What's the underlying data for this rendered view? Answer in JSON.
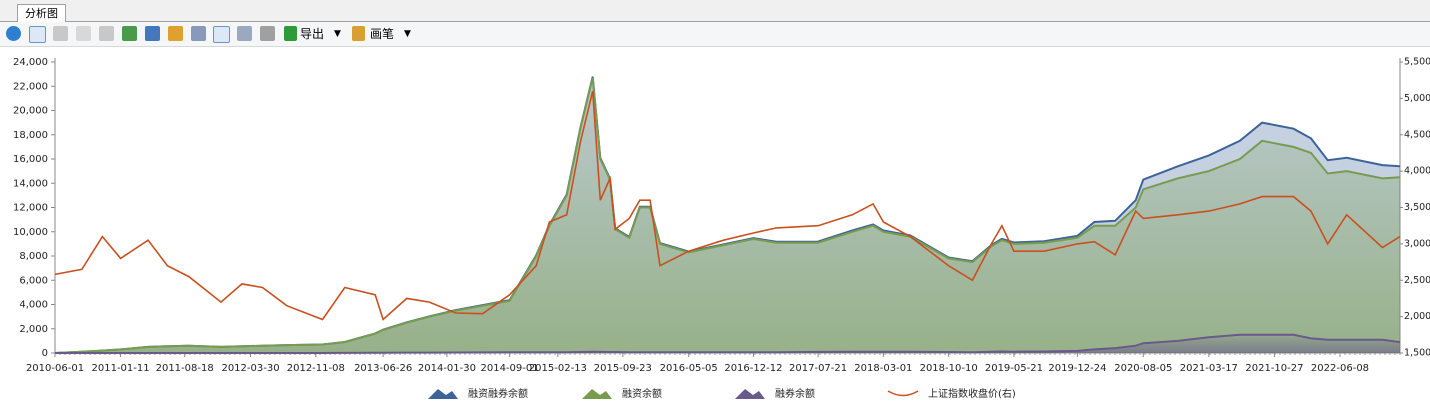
{
  "toolbar": {
    "tab": "分析图",
    "export": "导出",
    "pen": "画笔"
  },
  "chart_data": {
    "type": "area",
    "x": [
      "2010-06-01",
      "2010-09-01",
      "2010-11-10",
      "2011-01-11",
      "2011-04-15",
      "2011-06-20",
      "2011-09-01",
      "2011-12-20",
      "2012-03-01",
      "2012-05-10",
      "2012-08-01",
      "2012-12-01",
      "2013-02-15",
      "2013-05-30",
      "2013-06-26",
      "2013-09-15",
      "2013-12-01",
      "2014-03-01",
      "2014-06-01",
      "2014-09-01",
      "2014-12-01",
      "2015-01-15",
      "2015-03-15",
      "2015-05-01",
      "2015-06-12",
      "2015-07-08",
      "2015-08-10",
      "2015-08-28",
      "2015-10-15",
      "2015-11-20",
      "2015-12-25",
      "2016-01-28",
      "2016-05-05",
      "2016-09-01",
      "2016-12-12",
      "2017-03-01",
      "2017-07-21",
      "2017-11-15",
      "2018-01-25",
      "2018-03-01",
      "2018-06-01",
      "2018-10-10",
      "2018-12-30",
      "2019-03-05",
      "2019-04-10",
      "2019-05-21",
      "2019-09-01",
      "2019-12-24",
      "2020-02-20",
      "2020-05-01",
      "2020-07-10",
      "2020-08-05",
      "2020-12-01",
      "2021-03-17",
      "2021-07-01",
      "2021-09-15",
      "2021-12-31",
      "2022-03-01",
      "2022-04-27",
      "2022-07-01",
      "2022-10-31",
      "2022-12-30"
    ],
    "series": [
      {
        "name": "融资融券余额",
        "color": "#3d6399",
        "kind": "area",
        "axis": "y",
        "values": [
          0,
          100,
          200,
          300,
          500,
          550,
          600,
          500,
          550,
          600,
          650,
          700,
          910,
          1620,
          1920,
          2530,
          3030,
          3540,
          3950,
          4360,
          8060,
          10560,
          13070,
          18580,
          22800,
          16090,
          14380,
          10280,
          9570,
          12070,
          12070,
          9060,
          8360,
          8960,
          9470,
          9170,
          9190,
          10100,
          10610,
          10100,
          9700,
          7880,
          7570,
          8900,
          9420,
          9110,
          9220,
          9670,
          10800,
          10900,
          12600,
          14300,
          15400,
          16300,
          17500,
          19000,
          18500,
          17700,
          15900,
          16100,
          15500,
          15400
        ]
      },
      {
        "name": "融资余额",
        "color": "#789c4f",
        "kind": "area",
        "axis": "y",
        "values": [
          0,
          100,
          200,
          300,
          500,
          550,
          600,
          500,
          550,
          600,
          650,
          700,
          900,
          1600,
          1900,
          2500,
          3000,
          3500,
          3900,
          4300,
          8000,
          10500,
          13000,
          18500,
          22700,
          16000,
          14300,
          10200,
          9500,
          12000,
          12000,
          9000,
          8300,
          8900,
          9400,
          9100,
          9100,
          10000,
          10500,
          10000,
          9600,
          7800,
          7500,
          8800,
          9300,
          9000,
          9100,
          9500,
          10500,
          10500,
          12000,
          13500,
          14400,
          15000,
          16000,
          17500,
          17000,
          16500,
          14800,
          15000,
          14400,
          14500
        ]
      },
      {
        "name": "融券余额",
        "color": "#6a5a8c",
        "kind": "area",
        "axis": "y",
        "values": [
          0,
          0,
          0,
          0,
          0,
          0,
          0,
          0,
          0,
          0,
          0,
          0,
          10,
          20,
          20,
          30,
          30,
          40,
          50,
          60,
          60,
          60,
          70,
          80,
          100,
          90,
          80,
          80,
          70,
          70,
          70,
          60,
          60,
          60,
          70,
          70,
          90,
          100,
          110,
          100,
          100,
          80,
          70,
          100,
          120,
          110,
          120,
          170,
          300,
          400,
          600,
          800,
          1000,
          1300,
          1500,
          1500,
          1500,
          1200,
          1100,
          1100,
          1100,
          900
        ]
      },
      {
        "name": "上证指数收盘价(右)",
        "color": "#c9501e",
        "kind": "line",
        "axis": "y2",
        "values": [
          2580,
          2650,
          3100,
          2800,
          3050,
          2700,
          2550,
          2200,
          2450,
          2400,
          2150,
          1960,
          2400,
          2300,
          1960,
          2250,
          2200,
          2050,
          2040,
          2300,
          2700,
          3300,
          3400,
          4400,
          5100,
          3600,
          3900,
          3200,
          3350,
          3600,
          3600,
          2700,
          2900,
          3050,
          3150,
          3220,
          3250,
          3400,
          3550,
          3300,
          3100,
          2700,
          2500,
          3000,
          3250,
          2900,
          2900,
          3000,
          3030,
          2850,
          3450,
          3350,
          3400,
          3450,
          3550,
          3650,
          3650,
          3450,
          3000,
          3400,
          2950,
          3100
        ]
      }
    ],
    "xlim": [
      "2010-06-01",
      "2022-12-30"
    ],
    "xticks": [
      "2010-06-01",
      "2011-01-11",
      "2011-08-18",
      "2012-03-30",
      "2012-11-08",
      "2013-06-26",
      "2014-01-30",
      "2014-09-01",
      "2015-02-13",
      "2015-09-23",
      "2016-05-05",
      "2016-12-12",
      "2017-07-21",
      "2018-03-01",
      "2018-10-10",
      "2019-05-21",
      "2019-12-24",
      "2020-08-05",
      "2021-03-17",
      "2021-10-27",
      "2022-06-08"
    ],
    "ylim": [
      0,
      24000
    ],
    "yticks": [
      0,
      {
        "value": 2000,
        "label": "2,000"
      },
      {
        "value": 4000,
        "label": "4,000"
      },
      {
        "value": 6000,
        "label": "6,000"
      },
      {
        "value": 8000,
        "label": "8,000"
      },
      {
        "value": 10000,
        "label": "10,000"
      },
      {
        "value": 12000,
        "label": "12,000"
      },
      {
        "value": 14000,
        "label": "14,000"
      },
      {
        "value": 16000,
        "label": "16,000"
      },
      {
        "value": 18000,
        "label": "18,000"
      },
      {
        "value": 20000,
        "label": "20,000"
      },
      {
        "value": 22000,
        "label": "22,000"
      },
      {
        "value": 24000,
        "label": "24,000"
      }
    ],
    "y2lim": [
      1500,
      5500
    ],
    "y2ticks": [
      {
        "value": 1500,
        "label": "1,500"
      },
      {
        "value": 2000,
        "label": "2,000"
      },
      {
        "value": 2500,
        "label": "2,500"
      },
      {
        "value": 3000,
        "label": "3,000"
      },
      {
        "value": 3500,
        "label": "3,500"
      },
      {
        "value": 4000,
        "label": "4,000"
      },
      {
        "value": 4500,
        "label": "4,500"
      },
      {
        "value": 5000,
        "label": "5,000"
      },
      {
        "value": 5500,
        "label": "5,500"
      }
    ],
    "legend": "bottom"
  }
}
